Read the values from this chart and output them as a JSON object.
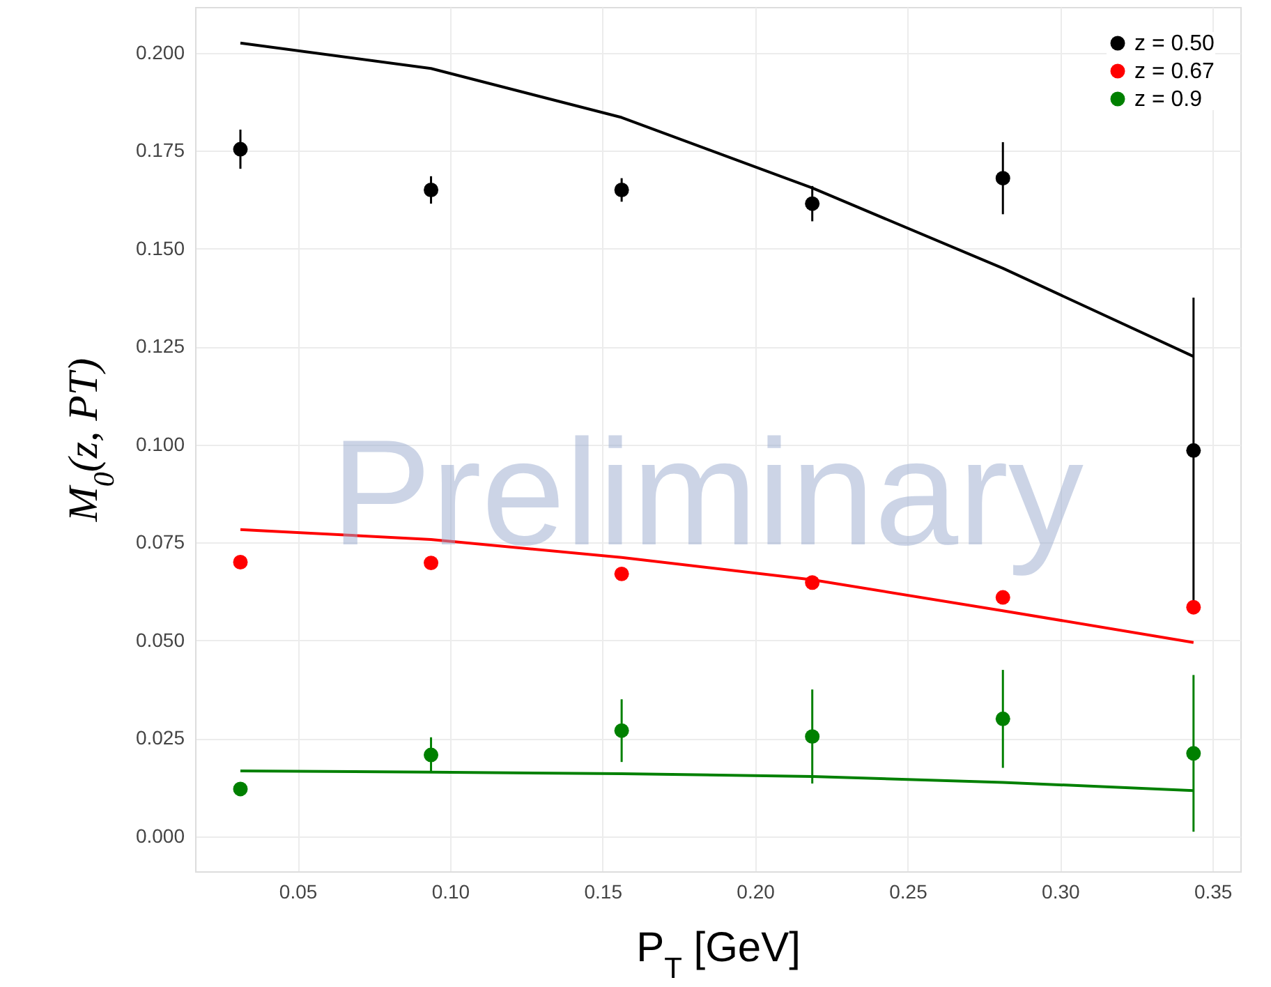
{
  "chart_data": {
    "type": "scatter",
    "xlabel": "P$_{T}$ [GeV]",
    "ylabel": "M$_{0}$(z, PT)",
    "annotations": [
      "Preliminary"
    ],
    "xlim": [
      0.0164,
      0.3591
    ],
    "ylim": [
      -0.0089,
      0.2117
    ],
    "xticks": [
      {
        "value": 0.05,
        "label": "0.05"
      },
      {
        "value": 0.1,
        "label": "0.10"
      },
      {
        "value": 0.15,
        "label": "0.15"
      },
      {
        "value": 0.2,
        "label": "0.20"
      },
      {
        "value": 0.25,
        "label": "0.25"
      },
      {
        "value": 0.3,
        "label": "0.30"
      },
      {
        "value": 0.35,
        "label": "0.35"
      }
    ],
    "yticks": [
      {
        "value": 0,
        "label": "0.000"
      },
      {
        "value": 0.025,
        "label": "0.025"
      },
      {
        "value": 0.05,
        "label": "0.050"
      },
      {
        "value": 0.075,
        "label": "0.075"
      },
      {
        "value": 0.1,
        "label": "0.100"
      },
      {
        "value": 0.125,
        "label": "0.125"
      },
      {
        "value": 0.15,
        "label": "0.150"
      },
      {
        "value": 0.175,
        "label": "0.175"
      },
      {
        "value": 0.2,
        "label": "0.200"
      }
    ],
    "grid": true,
    "legend": "top right",
    "marker": "circle",
    "series": [
      {
        "type": "line",
        "marker": "none",
        "color": "#000000",
        "x": [
          0.03125,
          0.09375,
          0.15625,
          0.21875,
          0.28125,
          0.34375
        ],
        "values": [
          0.2025,
          0.196,
          0.1835,
          0.1655,
          0.145,
          0.1225
        ]
      },
      {
        "type": "line",
        "marker": "none",
        "color": "#ff0000",
        "x": [
          0.03125,
          0.09375,
          0.15625,
          0.21875,
          0.28125,
          0.34375
        ],
        "values": [
          0.0783,
          0.0758,
          0.0712,
          0.0655,
          0.0576,
          0.0495
        ]
      },
      {
        "type": "line",
        "marker": "none",
        "color": "#008000",
        "x": [
          0.03125,
          0.09375,
          0.15625,
          0.21875,
          0.28125,
          0.34375
        ],
        "values": [
          0.0167,
          0.0164,
          0.016,
          0.0153,
          0.0138,
          0.0117
        ]
      },
      {
        "name": "z = 0.50",
        "color": "#000000",
        "x": [
          0.03125,
          0.09375,
          0.15625,
          0.21875,
          0.28125,
          0.34375
        ],
        "values": [
          0.1754,
          0.165,
          0.165,
          0.1615,
          0.168,
          0.0985
        ],
        "errors": [
          0.005,
          0.0035,
          0.003,
          0.0045,
          0.0092,
          0.039
        ]
      },
      {
        "name": "z = 0.67",
        "color": "#ff0000",
        "x": [
          0.03125,
          0.09375,
          0.15625,
          0.21875,
          0.28125,
          0.34375
        ],
        "values": [
          0.07,
          0.0698,
          0.067,
          0.0648,
          0.061,
          0.0585
        ],
        "errors": [
          0.001,
          0.001,
          0.001,
          0.001,
          0.001,
          0.001
        ]
      },
      {
        "name": "z = 0.9",
        "color": "#008000",
        "x": [
          0.03125,
          0.09375,
          0.15625,
          0.21875,
          0.28125,
          0.34375
        ],
        "values": [
          0.0121,
          0.0208,
          0.027,
          0.0255,
          0.03,
          0.0212
        ],
        "errors": [
          null,
          0.0045,
          0.008,
          0.012,
          0.0125,
          0.02
        ]
      }
    ]
  }
}
